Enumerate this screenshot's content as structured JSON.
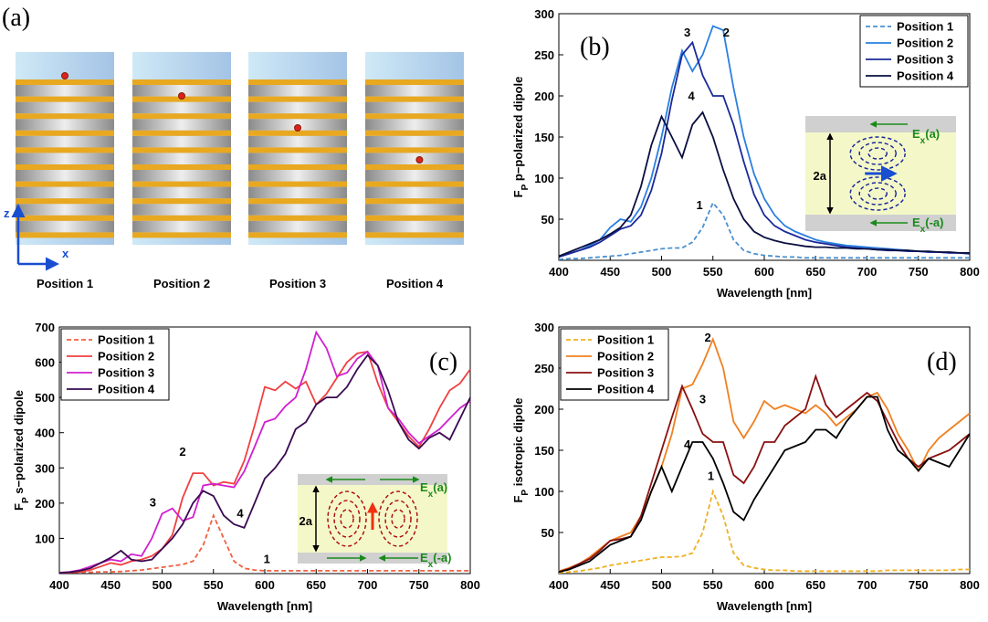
{
  "panel_a": {
    "label": "(a)",
    "positions": [
      "Position 1",
      "Position 2",
      "Position 3",
      "Position 4"
    ],
    "axes": [
      "z",
      "x"
    ]
  },
  "chart_data": [
    {
      "type": "line",
      "label": "(b)",
      "xlabel": "Wavelength [nm]",
      "ylabel": {
        "symbol": "F",
        "subscript": "P",
        "text": " p−polarized dipole"
      },
      "xlim": [
        400,
        800
      ],
      "xticks": [
        400,
        450,
        500,
        550,
        600,
        650,
        700,
        750,
        800
      ],
      "ylim": [
        0,
        300
      ],
      "yticks": [
        50,
        100,
        150,
        200,
        250,
        300
      ],
      "legend": "upper right",
      "x": [
        400,
        410,
        420,
        430,
        440,
        450,
        460,
        470,
        480,
        490,
        500,
        510,
        520,
        530,
        540,
        550,
        560,
        570,
        580,
        590,
        600,
        610,
        620,
        630,
        640,
        650,
        660,
        670,
        680,
        690,
        700,
        710,
        720,
        730,
        740,
        750,
        760,
        770,
        780,
        790,
        800
      ],
      "series": [
        {
          "name": "Position 1",
          "color": "#4a90d0",
          "dashed": true,
          "values": [
            1,
            2,
            2,
            3,
            4,
            5,
            6,
            8,
            10,
            12,
            14,
            15,
            15,
            22,
            40,
            70,
            55,
            25,
            12,
            8,
            6,
            5,
            4,
            4,
            3,
            3,
            3,
            3,
            3,
            3,
            3,
            3,
            3,
            3,
            3,
            3,
            3,
            3,
            3,
            3,
            3
          ]
        },
        {
          "name": "Position 2",
          "color": "#2a7fe0",
          "values": [
            5,
            8,
            12,
            18,
            25,
            40,
            50,
            47,
            65,
            100,
            150,
            210,
            255,
            230,
            250,
            285,
            280,
            210,
            150,
            105,
            75,
            55,
            42,
            35,
            30,
            25,
            22,
            20,
            18,
            17,
            16,
            15,
            14,
            13,
            12,
            11,
            10,
            10,
            9,
            9,
            8
          ]
        },
        {
          "name": "Position 3",
          "color": "#1a2a9a",
          "values": [
            4,
            8,
            12,
            16,
            22,
            30,
            38,
            42,
            55,
            85,
            130,
            195,
            250,
            265,
            225,
            200,
            200,
            165,
            120,
            80,
            55,
            42,
            35,
            30,
            25,
            22,
            20,
            18,
            16,
            15,
            14,
            13,
            12,
            12,
            11,
            11,
            10,
            10,
            9,
            9,
            8
          ]
        },
        {
          "name": "Position 4",
          "color": "#0a0f40",
          "values": [
            5,
            10,
            15,
            20,
            25,
            32,
            40,
            55,
            90,
            140,
            175,
            150,
            125,
            165,
            180,
            150,
            110,
            75,
            50,
            35,
            28,
            24,
            21,
            19,
            17,
            16,
            16,
            15,
            15,
            14,
            14,
            13,
            13,
            12,
            12,
            11,
            11,
            10,
            10,
            9,
            9
          ]
        }
      ],
      "annotations": [
        "3",
        "2",
        "4",
        "1"
      ],
      "inset": {
        "gap": "2a",
        "top": {
          "symbol": "E",
          "subscript": "x",
          "arg": "(a)"
        },
        "bottom": {
          "symbol": "E",
          "subscript": "x",
          "arg": "(-a)"
        }
      }
    },
    {
      "type": "line",
      "label": "(c)",
      "xlabel": "Wavelength [nm]",
      "ylabel": {
        "symbol": "F",
        "subscript": "P",
        "text": " s−polarized dipole"
      },
      "xlim": [
        400,
        800
      ],
      "xticks": [
        400,
        450,
        500,
        550,
        600,
        650,
        700,
        750,
        800
      ],
      "ylim": [
        0,
        700
      ],
      "yticks": [
        100,
        200,
        300,
        400,
        500,
        600,
        700
      ],
      "legend": "upper left",
      "x": [
        400,
        410,
        420,
        430,
        440,
        450,
        460,
        470,
        480,
        490,
        500,
        510,
        520,
        530,
        540,
        550,
        560,
        570,
        580,
        590,
        600,
        610,
        620,
        630,
        640,
        650,
        660,
        670,
        680,
        690,
        700,
        710,
        720,
        730,
        740,
        750,
        760,
        770,
        780,
        790,
        800
      ],
      "series": [
        {
          "name": "Position 1",
          "color": "#f06040",
          "dashed": true,
          "values": [
            3,
            3,
            4,
            4,
            5,
            5,
            6,
            8,
            10,
            14,
            18,
            22,
            26,
            35,
            80,
            165,
            100,
            35,
            15,
            10,
            8,
            8,
            8,
            8,
            8,
            8,
            8,
            8,
            8,
            8,
            8,
            8,
            8,
            8,
            8,
            8,
            8,
            8,
            8,
            8,
            8
          ]
        },
        {
          "name": "Position 2",
          "color": "#f04040",
          "values": [
            2,
            3,
            5,
            10,
            20,
            30,
            25,
            35,
            40,
            50,
            70,
            110,
            215,
            285,
            285,
            250,
            260,
            255,
            320,
            420,
            530,
            520,
            545,
            525,
            545,
            480,
            510,
            555,
            600,
            625,
            630,
            540,
            470,
            430,
            390,
            360,
            410,
            470,
            520,
            540,
            580
          ]
        },
        {
          "name": "Position 3",
          "color": "#d020d0",
          "values": [
            2,
            5,
            10,
            20,
            30,
            40,
            35,
            55,
            50,
            100,
            170,
            185,
            150,
            160,
            250,
            255,
            250,
            245,
            290,
            360,
            430,
            440,
            475,
            500,
            580,
            685,
            640,
            560,
            570,
            610,
            630,
            590,
            470,
            440,
            400,
            370,
            390,
            410,
            440,
            470,
            490
          ]
        },
        {
          "name": "Position 4",
          "color": "#3a0a50",
          "values": [
            2,
            4,
            8,
            15,
            30,
            45,
            65,
            40,
            35,
            40,
            70,
            100,
            140,
            200,
            235,
            220,
            165,
            140,
            130,
            200,
            270,
            300,
            340,
            410,
            430,
            480,
            500,
            500,
            530,
            580,
            620,
            590,
            520,
            430,
            380,
            355,
            385,
            400,
            380,
            440,
            500
          ]
        }
      ],
      "annotations": [
        "2",
        "3",
        "4",
        "1"
      ],
      "inset": {
        "gap": "2a",
        "top": {
          "symbol": "E",
          "subscript": "x",
          "arg": "(a)"
        },
        "bottom": {
          "symbol": "E",
          "subscript": "x",
          "arg": "(-a)"
        }
      }
    },
    {
      "type": "line",
      "label": "(d)",
      "xlabel": "Wavelength [nm]",
      "ylabel": {
        "symbol": "F",
        "subscript": "P",
        "text": " isotropic dipole"
      },
      "xlim": [
        400,
        800
      ],
      "xticks": [
        400,
        450,
        500,
        550,
        600,
        650,
        700,
        750,
        800
      ],
      "ylim": [
        0,
        300
      ],
      "yticks": [
        50,
        100,
        150,
        200,
        250,
        300
      ],
      "legend": "upper left",
      "x": [
        400,
        410,
        420,
        430,
        440,
        450,
        460,
        470,
        480,
        490,
        500,
        510,
        520,
        530,
        540,
        550,
        560,
        570,
        580,
        590,
        600,
        610,
        620,
        630,
        640,
        650,
        660,
        670,
        680,
        690,
        700,
        710,
        720,
        730,
        740,
        750,
        760,
        770,
        780,
        790,
        800
      ],
      "series": [
        {
          "name": "Position 1",
          "color": "#f0b020",
          "dashed": true,
          "values": [
            1,
            2,
            3,
            5,
            7,
            10,
            12,
            14,
            16,
            18,
            20,
            20,
            21,
            25,
            50,
            100,
            70,
            25,
            10,
            7,
            5,
            4,
            4,
            3,
            3,
            3,
            3,
            3,
            3,
            3,
            3,
            3,
            4,
            4,
            4,
            4,
            4,
            4,
            4,
            5,
            5
          ]
        },
        {
          "name": "Position 2",
          "color": "#f08020",
          "values": [
            3,
            7,
            12,
            20,
            30,
            40,
            45,
            50,
            70,
            100,
            130,
            170,
            225,
            230,
            255,
            285,
            250,
            185,
            165,
            185,
            210,
            200,
            205,
            200,
            195,
            205,
            195,
            180,
            190,
            200,
            215,
            220,
            200,
            170,
            150,
            125,
            150,
            165,
            175,
            185,
            195
          ]
        },
        {
          "name": "Position 3",
          "color": "#8a1010",
          "values": [
            2,
            6,
            12,
            18,
            28,
            40,
            42,
            45,
            70,
            110,
            150,
            190,
            228,
            200,
            170,
            160,
            160,
            120,
            110,
            130,
            160,
            160,
            180,
            190,
            200,
            240,
            205,
            190,
            200,
            210,
            220,
            210,
            185,
            160,
            140,
            130,
            140,
            145,
            150,
            160,
            170
          ]
        },
        {
          "name": "Position 4",
          "color": "#000000",
          "values": [
            2,
            5,
            10,
            15,
            25,
            35,
            40,
            45,
            65,
            100,
            130,
            100,
            130,
            160,
            160,
            140,
            110,
            75,
            65,
            90,
            110,
            130,
            150,
            155,
            160,
            175,
            175,
            165,
            185,
            200,
            215,
            215,
            175,
            150,
            140,
            125,
            140,
            135,
            130,
            150,
            170
          ]
        }
      ],
      "annotations": [
        "2",
        "3",
        "4",
        "1"
      ]
    }
  ]
}
